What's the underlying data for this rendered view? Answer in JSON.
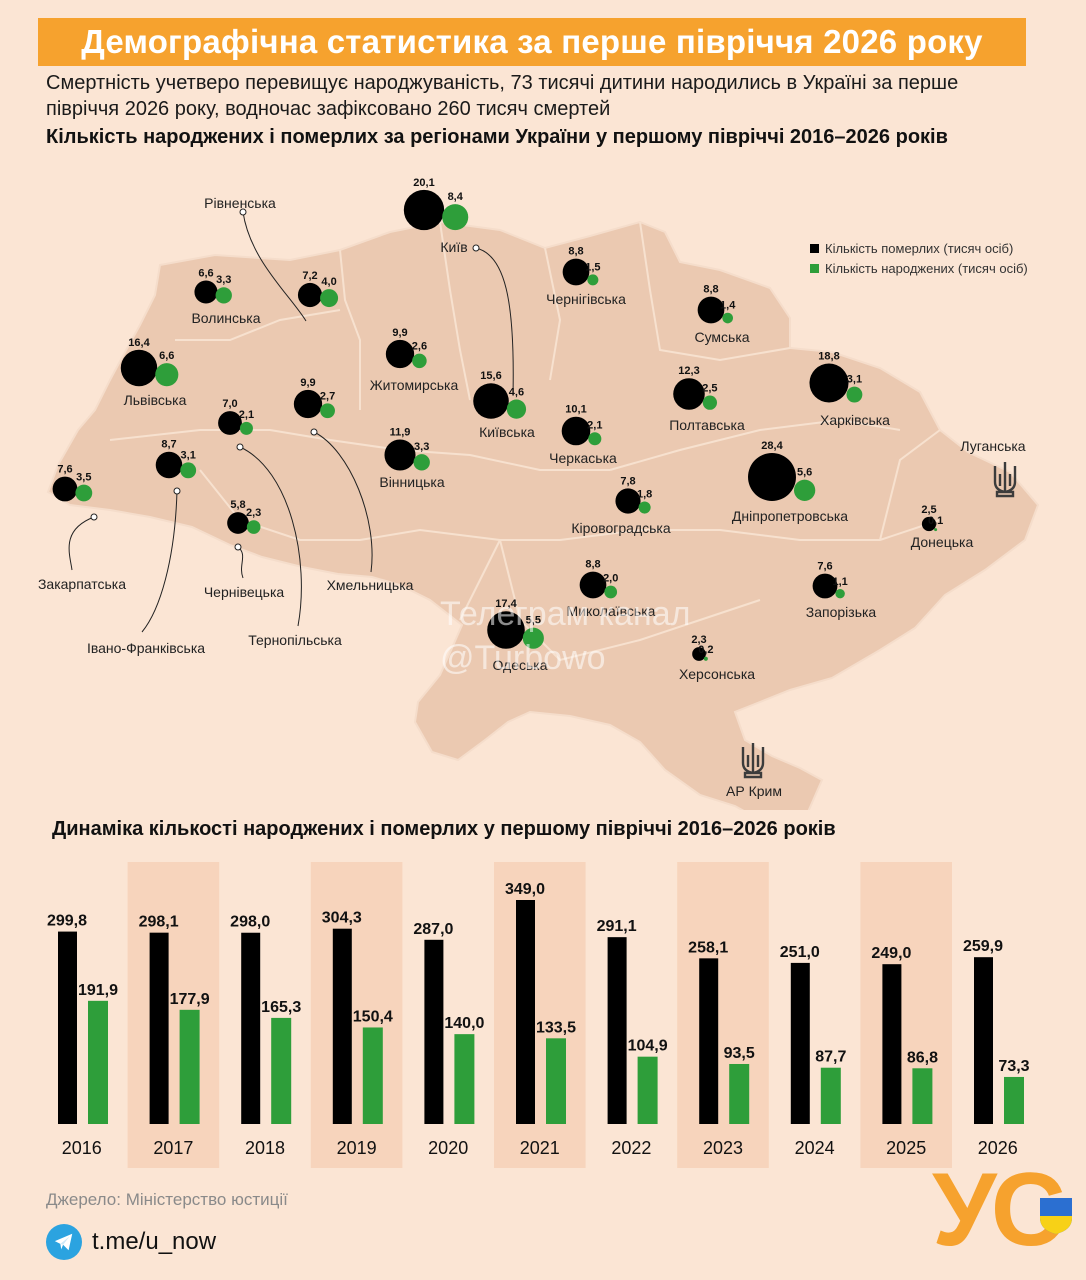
{
  "title": "Демографічна статистика за перше півріччя 2026 року",
  "subtitle": "Смертність учетверо перевищує народжуваність, 73 тисячі дитини народились в Україні за перше півріччя 2026 року, водночас зафіксовано 260 тисяч смертей",
  "colors": {
    "deaths": "#000000",
    "births": "#2e9e3a",
    "accent": "#f6a22e",
    "map": "#ebc9b1",
    "background": "#fbe5d4"
  },
  "chart_data": [
    {
      "type": "scatter",
      "title": "Кількість народжених і померлих за регіонами України у першому півріччі 2016–2026 років",
      "legend": [
        {
          "name": "Кількість померлих (тисяч осіб)",
          "color": "#000000"
        },
        {
          "name": "Кількість народжених (тисяч осіб)",
          "color": "#2e9e3a"
        }
      ],
      "legend_position": "top-right",
      "regions": [
        {
          "name": "Волинська",
          "deaths": "6,6",
          "births": "3,3"
        },
        {
          "name": "Рівненська",
          "deaths": "7,2",
          "births": "4,0"
        },
        {
          "name": "Київ",
          "deaths": "20,1",
          "births": "8,4"
        },
        {
          "name": "Чернігівська",
          "deaths": "8,8",
          "births": "1,5"
        },
        {
          "name": "Сумська",
          "deaths": "8,8",
          "births": "1,4"
        },
        {
          "name": "Львівська",
          "deaths": "16,4",
          "births": "6,6"
        },
        {
          "name": "Житомирська",
          "deaths": "9,9",
          "births": "2,6"
        },
        {
          "name": "Київська",
          "deaths": "15,6",
          "births": "4,6"
        },
        {
          "name": "Полтавська",
          "deaths": "12,3",
          "births": "2,5"
        },
        {
          "name": "Харківська",
          "deaths": "18,8",
          "births": "3,1"
        },
        {
          "name": "Тернопільська",
          "deaths": "7,0",
          "births": "2,1"
        },
        {
          "name": "Хмельницька",
          "deaths": "9,9",
          "births": "2,7"
        },
        {
          "name": "Вінницька",
          "deaths": "11,9",
          "births": "3,3"
        },
        {
          "name": "Черкаська",
          "deaths": "10,1",
          "births": "2,1"
        },
        {
          "name": "Луганська",
          "deaths": "",
          "births": ""
        },
        {
          "name": "Закарпатська",
          "deaths": "7,6",
          "births": "3,5"
        },
        {
          "name": "Івано-Франківська",
          "deaths": "8,7",
          "births": "3,1"
        },
        {
          "name": "Чернівецька",
          "deaths": "5,8",
          "births": "2,3"
        },
        {
          "name": "Кіровоградська",
          "deaths": "7,8",
          "births": "1,8"
        },
        {
          "name": "Дніпропетровська",
          "deaths": "28,4",
          "births": "5,6"
        },
        {
          "name": "Донецька",
          "deaths": "2,5",
          "births": "0,1"
        },
        {
          "name": "Миколаївська",
          "deaths": "8,8",
          "births": "2,0"
        },
        {
          "name": "Одеська",
          "deaths": "17,4",
          "births": "5,5"
        },
        {
          "name": "Запорізька",
          "deaths": "7,6",
          "births": "1,1"
        },
        {
          "name": "Херсонська",
          "deaths": "2,3",
          "births": "0,2"
        },
        {
          "name": "АР Крим",
          "deaths": "",
          "births": ""
        }
      ]
    },
    {
      "type": "bar",
      "title": "Динаміка кількості народжених і померлих у першому півріччі 2016–2026 років",
      "categories": [
        "2016",
        "2017",
        "2018",
        "2019",
        "2020",
        "2021",
        "2022",
        "2023",
        "2024",
        "2025",
        "2026"
      ],
      "series": [
        {
          "values": [
            299.8,
            298.1,
            298.0,
            304.3,
            287.0,
            349.0,
            291.1,
            258.1,
            251.0,
            249.0,
            259.9
          ],
          "labels": [
            "299,8",
            "298,1",
            "298,0",
            "304,3",
            "287,0",
            "349,0",
            "291,1",
            "258,1",
            "251,0",
            "249,0",
            "259,9"
          ],
          "color": "#000000"
        },
        {
          "values": [
            191.9,
            177.9,
            165.3,
            150.4,
            140.0,
            133.5,
            104.9,
            93.5,
            87.7,
            86.8,
            73.3
          ],
          "labels": [
            "191,9",
            "177,9",
            "165,3",
            "150,4",
            "140,0",
            "133,5",
            "104,9",
            "93,5",
            "87,7",
            "86,8",
            "73,3"
          ],
          "color": "#2e9e3a"
        }
      ],
      "ylim": [
        0,
        349.0
      ],
      "grid": false
    }
  ],
  "watermark": {
    "line1": "Телеграм канал",
    "line2": "@Turbowo"
  },
  "footer": {
    "source": "Джерело: Міністерство юстиції",
    "link": "t.me/u_now",
    "logo_text": "УС"
  },
  "icons": [
    "telegram-icon",
    "trident-icon",
    "us-logo"
  ]
}
